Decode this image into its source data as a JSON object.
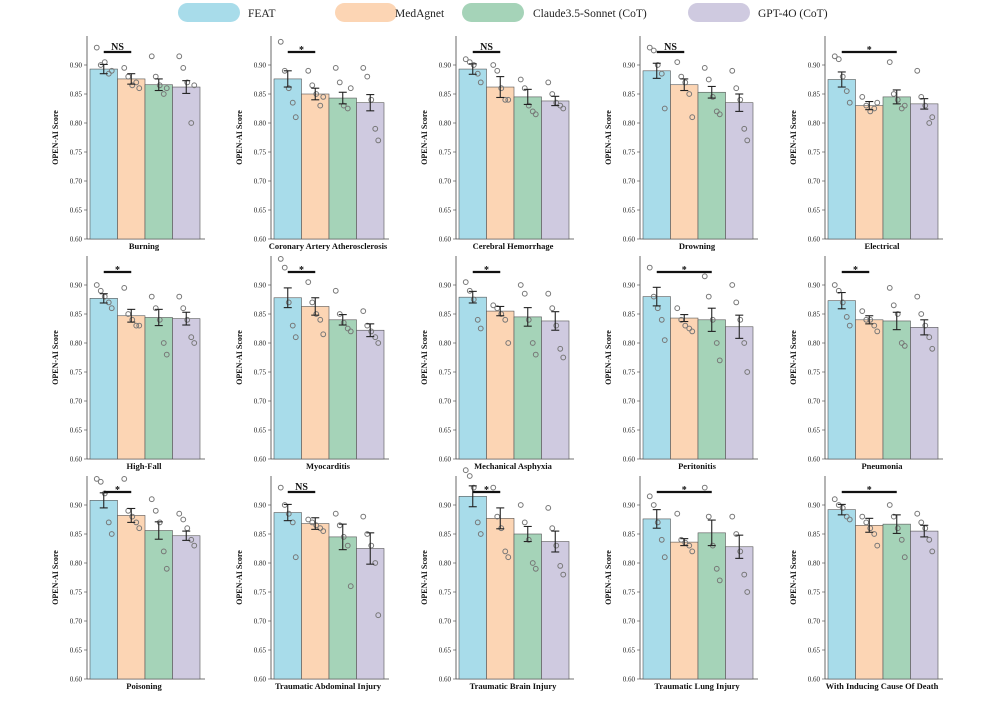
{
  "legend": [
    "FEAT",
    "MedAgnet",
    "Claude3.5-Sonnet (CoT)",
    "GPT-4O (CoT)"
  ],
  "colors": {
    "FEAT": "#a8dcea",
    "MedAgnet": "#fcd5b4",
    "Claude3.5-Sonnet (CoT)": "#a5d3b8",
    "GPT-4O (CoT)": "#cfcae0",
    "edge": "#555555"
  },
  "chart_data": [
    {
      "type": "bar",
      "title": "Burning",
      "ylabel": "OPEN-AI Score",
      "ylim": [
        0.6,
        0.95
      ],
      "yticks": [
        0.6,
        0.65,
        0.7,
        0.75,
        0.8,
        0.85,
        0.9
      ],
      "categories": [
        "FEAT",
        "MedAgnet",
        "Claude3.5-Sonnet (CoT)",
        "GPT-4O (CoT)"
      ],
      "values": [
        0.893,
        0.876,
        0.866,
        0.862
      ],
      "errors": [
        0.008,
        0.009,
        0.01,
        0.011
      ],
      "points": [
        [
          0.93,
          0.9,
          0.905,
          0.885,
          0.89
        ],
        [
          0.895,
          0.88,
          0.865,
          0.87,
          0.86
        ],
        [
          0.915,
          0.88,
          0.865,
          0.85,
          0.86
        ],
        [
          0.915,
          0.895,
          0.87,
          0.8,
          0.865
        ]
      ],
      "significance": {
        "label": "NS",
        "from": 0,
        "to": 1
      }
    },
    {
      "type": "bar",
      "title": "Coronary Artery Atherosclerosis",
      "ylabel": "OPEN-AI Score",
      "ylim": [
        0.6,
        0.95
      ],
      "yticks": [
        0.6,
        0.65,
        0.7,
        0.75,
        0.8,
        0.85,
        0.9
      ],
      "categories": [
        "FEAT",
        "MedAgnet",
        "Claude3.5-Sonnet (CoT)",
        "GPT-4O (CoT)"
      ],
      "values": [
        0.876,
        0.85,
        0.843,
        0.835
      ],
      "errors": [
        0.014,
        0.01,
        0.01,
        0.014
      ],
      "points": [
        [
          0.94,
          0.89,
          0.86,
          0.835,
          0.81
        ],
        [
          0.89,
          0.865,
          0.85,
          0.83,
          0.845
        ],
        [
          0.895,
          0.87,
          0.83,
          0.825,
          0.86
        ],
        [
          0.895,
          0.88,
          0.84,
          0.79,
          0.77
        ]
      ],
      "significance": {
        "label": "*",
        "from": 0,
        "to": 1
      }
    },
    {
      "type": "bar",
      "title": "Cerebral Hemorrhage",
      "ylabel": "OPEN-AI Score",
      "ylim": [
        0.6,
        0.95
      ],
      "yticks": [
        0.6,
        0.65,
        0.7,
        0.75,
        0.8,
        0.85,
        0.9
      ],
      "categories": [
        "FEAT",
        "MedAgnet",
        "Claude3.5-Sonnet (CoT)",
        "GPT-4O (CoT)"
      ],
      "values": [
        0.893,
        0.862,
        0.845,
        0.838
      ],
      "errors": [
        0.009,
        0.018,
        0.013,
        0.008
      ],
      "points": [
        [
          0.91,
          0.905,
          0.9,
          0.885,
          0.87
        ],
        [
          0.9,
          0.89,
          0.86,
          0.84,
          0.84
        ],
        [
          0.875,
          0.86,
          0.83,
          0.82,
          0.815
        ],
        [
          0.87,
          0.85,
          0.835,
          0.83,
          0.825
        ]
      ],
      "significance": {
        "label": "NS",
        "from": 0,
        "to": 1
      }
    },
    {
      "type": "bar",
      "title": "Drowning",
      "ylabel": "OPEN-AI Score",
      "ylim": [
        0.6,
        0.95
      ],
      "yticks": [
        0.6,
        0.65,
        0.7,
        0.75,
        0.8,
        0.85,
        0.9
      ],
      "categories": [
        "FEAT",
        "MedAgnet",
        "Claude3.5-Sonnet (CoT)",
        "GPT-4O (CoT)"
      ],
      "values": [
        0.89,
        0.866,
        0.853,
        0.835
      ],
      "errors": [
        0.013,
        0.01,
        0.01,
        0.015
      ],
      "points": [
        [
          0.93,
          0.925,
          0.9,
          0.885,
          0.825
        ],
        [
          0.905,
          0.88,
          0.87,
          0.85,
          0.81
        ],
        [
          0.895,
          0.875,
          0.845,
          0.82,
          0.815
        ],
        [
          0.89,
          0.86,
          0.84,
          0.79,
          0.77
        ]
      ],
      "significance": {
        "label": "NS",
        "from": 0,
        "to": 1
      }
    },
    {
      "type": "bar",
      "title": "Electrical",
      "ylabel": "OPEN-AI Score",
      "ylim": [
        0.6,
        0.95
      ],
      "yticks": [
        0.6,
        0.65,
        0.7,
        0.75,
        0.8,
        0.85,
        0.9
      ],
      "categories": [
        "FEAT",
        "MedAgnet",
        "Claude3.5-Sonnet (CoT)",
        "GPT-4O (CoT)"
      ],
      "values": [
        0.875,
        0.83,
        0.845,
        0.833
      ],
      "errors": [
        0.013,
        0.007,
        0.012,
        0.009
      ],
      "points": [
        [
          0.915,
          0.91,
          0.88,
          0.855,
          0.835
        ],
        [
          0.845,
          0.83,
          0.82,
          0.825,
          0.835
        ],
        [
          0.905,
          0.85,
          0.84,
          0.825,
          0.83
        ],
        [
          0.89,
          0.845,
          0.83,
          0.8,
          0.81
        ]
      ],
      "significance": {
        "label": "*",
        "from": 0,
        "to": 2
      }
    },
    {
      "type": "bar",
      "title": "High-Fall",
      "ylabel": "OPEN-AI Score",
      "ylim": [
        0.6,
        0.95
      ],
      "yticks": [
        0.6,
        0.65,
        0.7,
        0.75,
        0.8,
        0.85,
        0.9
      ],
      "categories": [
        "FEAT",
        "MedAgnet",
        "Claude3.5-Sonnet (CoT)",
        "GPT-4O (CoT)"
      ],
      "values": [
        0.877,
        0.847,
        0.844,
        0.842
      ],
      "errors": [
        0.008,
        0.011,
        0.014,
        0.011
      ],
      "points": [
        [
          0.9,
          0.89,
          0.88,
          0.87,
          0.86
        ],
        [
          0.895,
          0.85,
          0.84,
          0.83,
          0.83
        ],
        [
          0.88,
          0.86,
          0.84,
          0.8,
          0.78
        ],
        [
          0.88,
          0.86,
          0.84,
          0.81,
          0.8
        ]
      ],
      "significance": {
        "label": "*",
        "from": 0,
        "to": 1
      }
    },
    {
      "type": "bar",
      "title": "Myocarditis",
      "ylabel": "OPEN-AI Score",
      "ylim": [
        0.6,
        0.95
      ],
      "yticks": [
        0.6,
        0.65,
        0.7,
        0.75,
        0.8,
        0.85,
        0.9
      ],
      "categories": [
        "FEAT",
        "MedAgnet",
        "Claude3.5-Sonnet (CoT)",
        "GPT-4O (CoT)"
      ],
      "values": [
        0.878,
        0.863,
        0.84,
        0.822
      ],
      "errors": [
        0.017,
        0.015,
        0.009,
        0.011
      ],
      "points": [
        [
          0.945,
          0.93,
          0.87,
          0.83,
          0.81
        ],
        [
          0.905,
          0.87,
          0.85,
          0.84,
          0.815
        ],
        [
          0.89,
          0.85,
          0.835,
          0.825,
          0.82
        ],
        [
          0.855,
          0.83,
          0.82,
          0.81,
          0.8
        ]
      ],
      "significance": {
        "label": "*",
        "from": 0,
        "to": 1
      }
    },
    {
      "type": "bar",
      "title": "Mechanical Asphyxia",
      "ylabel": "OPEN-AI Score",
      "ylim": [
        0.6,
        0.95
      ],
      "yticks": [
        0.6,
        0.65,
        0.7,
        0.75,
        0.8,
        0.85,
        0.9
      ],
      "categories": [
        "FEAT",
        "MedAgnet",
        "Claude3.5-Sonnet (CoT)",
        "GPT-4O (CoT)"
      ],
      "values": [
        0.879,
        0.855,
        0.845,
        0.838
      ],
      "errors": [
        0.01,
        0.008,
        0.016,
        0.016
      ],
      "points": [
        [
          0.905,
          0.89,
          0.875,
          0.84,
          0.825
        ],
        [
          0.865,
          0.86,
          0.85,
          0.84,
          0.8
        ],
        [
          0.9,
          0.885,
          0.84,
          0.8,
          0.78
        ],
        [
          0.885,
          0.86,
          0.83,
          0.79,
          0.775
        ]
      ],
      "significance": {
        "label": "*",
        "from": 0,
        "to": 1
      }
    },
    {
      "type": "bar",
      "title": "Peritonitis",
      "ylabel": "OPEN-AI Score",
      "ylim": [
        0.6,
        0.95
      ],
      "yticks": [
        0.6,
        0.65,
        0.7,
        0.75,
        0.8,
        0.85,
        0.9
      ],
      "categories": [
        "FEAT",
        "MedAgnet",
        "Claude3.5-Sonnet (CoT)",
        "GPT-4O (CoT)"
      ],
      "values": [
        0.88,
        0.843,
        0.84,
        0.828
      ],
      "errors": [
        0.016,
        0.006,
        0.02,
        0.02
      ],
      "points": [
        [
          0.93,
          0.88,
          0.86,
          0.84,
          0.805
        ],
        [
          0.86,
          0.84,
          0.83,
          0.825,
          0.82
        ],
        [
          0.915,
          0.88,
          0.84,
          0.8,
          0.77
        ],
        [
          0.9,
          0.87,
          0.84,
          0.8,
          0.75
        ]
      ],
      "significance": {
        "label": "*",
        "from": 0,
        "to": 2
      }
    },
    {
      "type": "bar",
      "title": "Pneumonia",
      "ylabel": "OPEN-AI Score",
      "ylim": [
        0.6,
        0.95
      ],
      "yticks": [
        0.6,
        0.65,
        0.7,
        0.75,
        0.8,
        0.85,
        0.9
      ],
      "categories": [
        "FEAT",
        "MedAgnet",
        "Claude3.5-Sonnet (CoT)",
        "GPT-4O (CoT)"
      ],
      "values": [
        0.873,
        0.84,
        0.838,
        0.827
      ],
      "errors": [
        0.014,
        0.007,
        0.015,
        0.013
      ],
      "points": [
        [
          0.9,
          0.89,
          0.87,
          0.845,
          0.83
        ],
        [
          0.855,
          0.84,
          0.84,
          0.83,
          0.82
        ],
        [
          0.895,
          0.865,
          0.85,
          0.8,
          0.795
        ],
        [
          0.88,
          0.85,
          0.83,
          0.81,
          0.79
        ]
      ],
      "significance": {
        "label": "*",
        "from": 0,
        "to": 1
      }
    },
    {
      "type": "bar",
      "title": "Poisoning",
      "ylabel": "OPEN-AI Score",
      "ylim": [
        0.6,
        0.95
      ],
      "yticks": [
        0.6,
        0.65,
        0.7,
        0.75,
        0.8,
        0.85,
        0.9
      ],
      "categories": [
        "FEAT",
        "MedAgnet",
        "Claude3.5-Sonnet (CoT)",
        "GPT-4O (CoT)"
      ],
      "values": [
        0.908,
        0.882,
        0.856,
        0.847
      ],
      "errors": [
        0.013,
        0.012,
        0.015,
        0.008
      ],
      "points": [
        [
          0.945,
          0.94,
          0.92,
          0.87,
          0.85
        ],
        [
          0.945,
          0.89,
          0.88,
          0.87,
          0.86
        ],
        [
          0.91,
          0.89,
          0.87,
          0.82,
          0.79
        ],
        [
          0.885,
          0.875,
          0.86,
          0.84,
          0.83
        ]
      ],
      "significance": {
        "label": "*",
        "from": 0,
        "to": 1
      }
    },
    {
      "type": "bar",
      "title": "Traumatic Abdominal Injury",
      "ylabel": "OPEN-AI Score",
      "ylim": [
        0.6,
        0.95
      ],
      "yticks": [
        0.6,
        0.65,
        0.7,
        0.75,
        0.8,
        0.85,
        0.9
      ],
      "categories": [
        "FEAT",
        "MedAgnet",
        "Claude3.5-Sonnet (CoT)",
        "GPT-4O (CoT)"
      ],
      "values": [
        0.887,
        0.868,
        0.845,
        0.825
      ],
      "errors": [
        0.014,
        0.01,
        0.022,
        0.027
      ],
      "points": [
        [
          0.93,
          0.9,
          0.885,
          0.87,
          0.81
        ],
        [
          0.875,
          0.87,
          0.865,
          0.86,
          0.855
        ],
        [
          0.885,
          0.865,
          0.845,
          0.83,
          0.76
        ],
        [
          0.88,
          0.85,
          0.83,
          0.8,
          0.71
        ]
      ],
      "significance": {
        "label": "NS",
        "from": 0,
        "to": 1
      }
    },
    {
      "type": "bar",
      "title": "Traumatic Brain Injury",
      "ylabel": "OPEN-AI Score",
      "ylim": [
        0.6,
        0.95
      ],
      "yticks": [
        0.6,
        0.65,
        0.7,
        0.75,
        0.8,
        0.85,
        0.9
      ],
      "categories": [
        "FEAT",
        "MedAgnet",
        "Claude3.5-Sonnet (CoT)",
        "GPT-4O (CoT)"
      ],
      "values": [
        0.915,
        0.877,
        0.85,
        0.837
      ],
      "errors": [
        0.018,
        0.018,
        0.013,
        0.018
      ],
      "points": [
        [
          0.96,
          0.95,
          0.93,
          0.87,
          0.85
        ],
        [
          0.93,
          0.88,
          0.86,
          0.82,
          0.81
        ],
        [
          0.9,
          0.87,
          0.84,
          0.8,
          0.79
        ],
        [
          0.895,
          0.86,
          0.83,
          0.795,
          0.78
        ]
      ],
      "significance": {
        "label": "*",
        "from": 0,
        "to": 1
      }
    },
    {
      "type": "bar",
      "title": "Traumatic Lung Injury",
      "ylabel": "OPEN-AI Score",
      "ylim": [
        0.6,
        0.95
      ],
      "yticks": [
        0.6,
        0.65,
        0.7,
        0.75,
        0.8,
        0.85,
        0.9
      ],
      "categories": [
        "FEAT",
        "MedAgnet",
        "Claude3.5-Sonnet (CoT)",
        "GPT-4O (CoT)"
      ],
      "values": [
        0.876,
        0.836,
        0.852,
        0.828
      ],
      "errors": [
        0.016,
        0.006,
        0.022,
        0.02
      ],
      "points": [
        [
          0.915,
          0.9,
          0.87,
          0.84,
          0.81
        ],
        [
          0.885,
          0.84,
          0.835,
          0.83,
          0.82
        ],
        [
          0.93,
          0.88,
          0.83,
          0.79,
          0.77
        ],
        [
          0.88,
          0.85,
          0.82,
          0.78,
          0.75
        ]
      ],
      "significance": {
        "label": "*",
        "from": 0,
        "to": 2
      }
    },
    {
      "type": "bar",
      "title": "With Inducing Cause Of Death",
      "ylabel": "OPEN-AI Score",
      "ylim": [
        0.6,
        0.95
      ],
      "yticks": [
        0.6,
        0.65,
        0.7,
        0.75,
        0.8,
        0.85,
        0.9
      ],
      "categories": [
        "FEAT",
        "MedAgnet",
        "Claude3.5-Sonnet (CoT)",
        "GPT-4O (CoT)"
      ],
      "values": [
        0.892,
        0.865,
        0.867,
        0.855
      ],
      "errors": [
        0.009,
        0.012,
        0.016,
        0.01
      ],
      "points": [
        [
          0.91,
          0.9,
          0.895,
          0.88,
          0.875
        ],
        [
          0.88,
          0.87,
          0.86,
          0.85,
          0.83
        ],
        [
          0.9,
          0.88,
          0.86,
          0.84,
          0.81
        ],
        [
          0.885,
          0.87,
          0.86,
          0.84,
          0.82
        ]
      ],
      "significance": {
        "label": "*",
        "from": 0,
        "to": 2
      }
    }
  ]
}
